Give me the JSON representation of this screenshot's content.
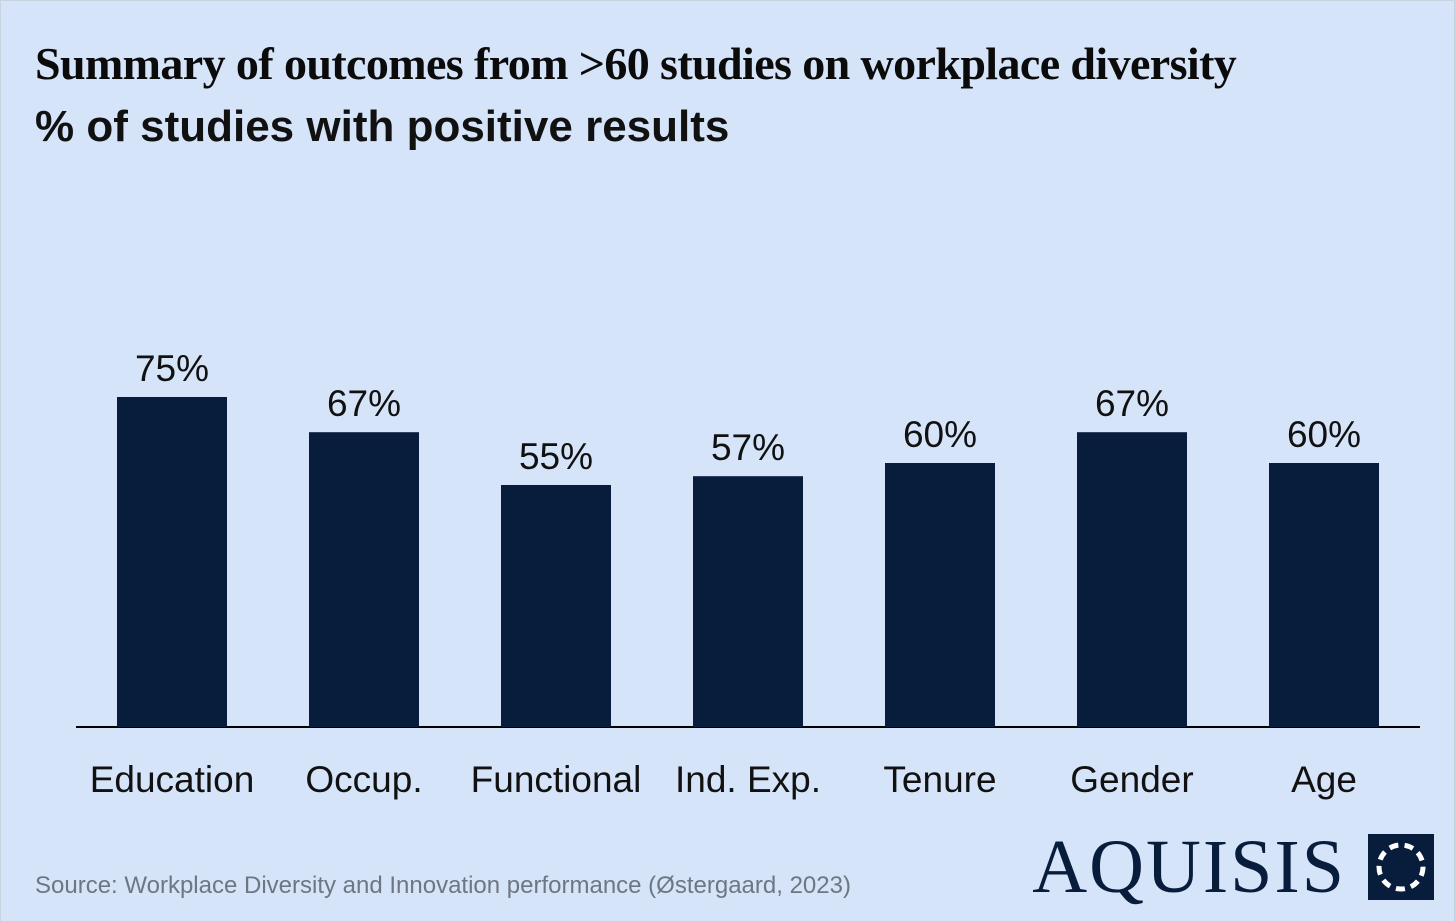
{
  "title": "Summary of outcomes from >60 studies on workplace diversity",
  "subtitle": "% of studies with positive results",
  "source": "Source: Workplace Diversity and Innovation performance (Østergaard, 2023)",
  "brand": {
    "name": "AQUISIS",
    "logo_icon": "dashed-circle-square-icon"
  },
  "colors": {
    "background": "#d5e4f9",
    "bar": "#081d3c",
    "text": "#111111"
  },
  "chart_data": {
    "type": "bar",
    "title": "Summary of outcomes from >60 studies on workplace diversity",
    "subtitle": "% of studies with positive results",
    "categories": [
      "Education",
      "Occup.",
      "Functional",
      "Ind. Exp.",
      "Tenure",
      "Gender",
      "Age"
    ],
    "values": [
      75,
      67,
      55,
      57,
      60,
      67,
      60
    ],
    "value_labels": [
      "75%",
      "67%",
      "55%",
      "57%",
      "60%",
      "67%",
      "60%"
    ],
    "unit": "%",
    "xlabel": "",
    "ylabel": "",
    "ylim": [
      0,
      100
    ],
    "grid": false,
    "legend": "none"
  }
}
